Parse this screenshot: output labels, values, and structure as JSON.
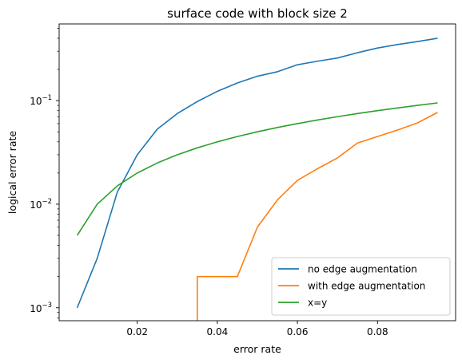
{
  "chart_data": {
    "type": "line",
    "title": "surface code with block size 2",
    "xlabel": "error rate",
    "ylabel": "logical error rate",
    "xlim": [
      0.0005,
      0.0995
    ],
    "ylim": [
      0.00075,
      0.55
    ],
    "yscale": "log",
    "grid": false,
    "legend_position": "lower-right",
    "x_ticks": [
      {
        "value": 0.02,
        "label": "0.02"
      },
      {
        "value": 0.04,
        "label": "0.04"
      },
      {
        "value": 0.06,
        "label": "0.06"
      },
      {
        "value": 0.08,
        "label": "0.08"
      }
    ],
    "y_ticks": [
      {
        "value": 0.001,
        "base": "10",
        "exp": "−3"
      },
      {
        "value": 0.01,
        "base": "10",
        "exp": "−2"
      },
      {
        "value": 0.1,
        "base": "10",
        "exp": "−1"
      }
    ],
    "series": [
      {
        "name": "no edge augmentation",
        "color": "#1f77b4",
        "x": [
          0.005,
          0.01,
          0.015,
          0.02,
          0.025,
          0.03,
          0.035,
          0.04,
          0.045,
          0.05,
          0.055,
          0.06,
          0.065,
          0.07,
          0.075,
          0.08,
          0.085,
          0.09,
          0.095
        ],
        "y": [
          0.001,
          0.003,
          0.013,
          0.03,
          0.053,
          0.075,
          0.098,
          0.123,
          0.148,
          0.172,
          0.19,
          0.222,
          0.24,
          0.258,
          0.29,
          0.322,
          0.348,
          0.372,
          0.4
        ]
      },
      {
        "name": "with edge augmentation",
        "color": "#ff7f0e",
        "x": [
          0.035,
          0.035,
          0.04,
          0.045,
          0.05,
          0.055,
          0.06,
          0.065,
          0.07,
          0.075,
          0.08,
          0.085,
          0.09,
          0.095
        ],
        "y": [
          0.0007,
          0.002,
          0.002,
          0.002,
          0.006,
          0.011,
          0.017,
          0.022,
          0.028,
          0.039,
          0.045,
          0.052,
          0.061,
          0.077
        ]
      },
      {
        "name": "x=y",
        "color": "#2ca02c",
        "x": [
          0.005,
          0.01,
          0.015,
          0.02,
          0.025,
          0.03,
          0.035,
          0.04,
          0.045,
          0.05,
          0.055,
          0.06,
          0.065,
          0.07,
          0.075,
          0.08,
          0.085,
          0.09,
          0.095
        ],
        "y": [
          0.005,
          0.01,
          0.015,
          0.02,
          0.025,
          0.03,
          0.035,
          0.04,
          0.045,
          0.05,
          0.055,
          0.06,
          0.065,
          0.07,
          0.075,
          0.08,
          0.085,
          0.09,
          0.095
        ]
      }
    ]
  }
}
